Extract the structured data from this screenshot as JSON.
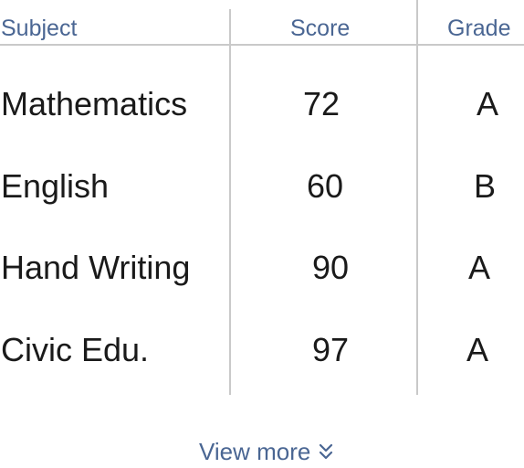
{
  "table": {
    "columns": [
      "Subject",
      "Score",
      "Grade"
    ],
    "rows": [
      {
        "subject": "Mathematics",
        "score": "72",
        "grade": "A"
      },
      {
        "subject": "English",
        "score": "60",
        "grade": "B"
      },
      {
        "subject": "Hand Writing",
        "score": "90",
        "grade": "A"
      },
      {
        "subject": "Civic Edu.",
        "score": "97",
        "grade": "A"
      }
    ]
  },
  "footer": {
    "view_more_label": "View more",
    "view_more_icon": "chevrons-down-icon"
  },
  "colors": {
    "header_text": "#4a6693",
    "body_text": "#1a1a1a",
    "divider": "#c9c9c9"
  }
}
